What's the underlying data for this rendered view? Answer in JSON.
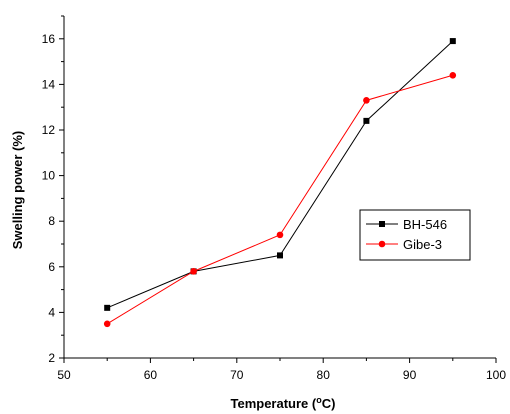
{
  "chart_data": {
    "type": "line",
    "title": "",
    "xlabel": "Temperature",
    "xlabel_unit_prefix": "(",
    "xlabel_unit_sup": "o",
    "xlabel_unit_suffix": "C)",
    "ylabel": "Swelling power (%)",
    "x": [
      55,
      65,
      75,
      85,
      95
    ],
    "xlim": [
      50,
      100
    ],
    "ylim": [
      2,
      17
    ],
    "xticks": [
      50,
      60,
      70,
      80,
      90,
      100
    ],
    "yticks": [
      2,
      4,
      6,
      8,
      10,
      12,
      14,
      16
    ],
    "grid": false,
    "legend_position": "right",
    "series": [
      {
        "name": "BH-546",
        "values": [
          4.2,
          5.8,
          6.5,
          12.4,
          15.9
        ],
        "color": "#000000",
        "marker": "square"
      },
      {
        "name": "Gibe-3",
        "values": [
          3.5,
          5.8,
          7.4,
          13.3,
          14.4
        ],
        "color": "#ff0000",
        "marker": "circle"
      }
    ]
  }
}
